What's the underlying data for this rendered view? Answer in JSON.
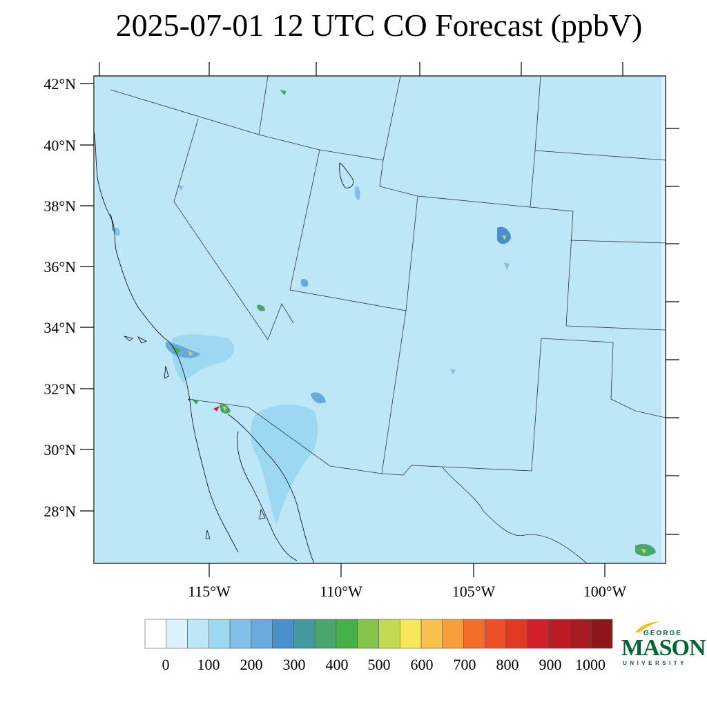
{
  "title": "2025-07-01 12 UTC CO Forecast (ppbV)",
  "lat_labels": [
    "42°N",
    "40°N",
    "38°N",
    "36°N",
    "34°N",
    "32°N",
    "30°N",
    "28°N"
  ],
  "lon_labels": [
    "115°W",
    "110°W",
    "105°W",
    "100°W"
  ],
  "colorbar": {
    "labels": [
      "0",
      "100",
      "200",
      "300",
      "400",
      "500",
      "600",
      "700",
      "800",
      "900",
      "1000"
    ],
    "colors": [
      "#ffffff",
      "#dcf1fb",
      "#bde6f7",
      "#9dd8f3",
      "#84bfe5",
      "#69a9db",
      "#4b8fcd",
      "#45999e",
      "#48a56c",
      "#44b045",
      "#84c34c",
      "#c3d954",
      "#f7e759",
      "#f8c04c",
      "#f89d3c",
      "#f46c2a",
      "#ec4f2a",
      "#e03a27",
      "#d22028",
      "#bb1b24",
      "#a61c22",
      "#8b1719"
    ]
  },
  "logo": {
    "george": "GEORGE",
    "mason": "MASON",
    "university": "UNIVERSITY",
    "brand_green": "#006633",
    "brand_gold": "#f2c200"
  },
  "map": {
    "background_color": "#bde6f7",
    "region": "Southwestern United States and northern Mexico"
  }
}
